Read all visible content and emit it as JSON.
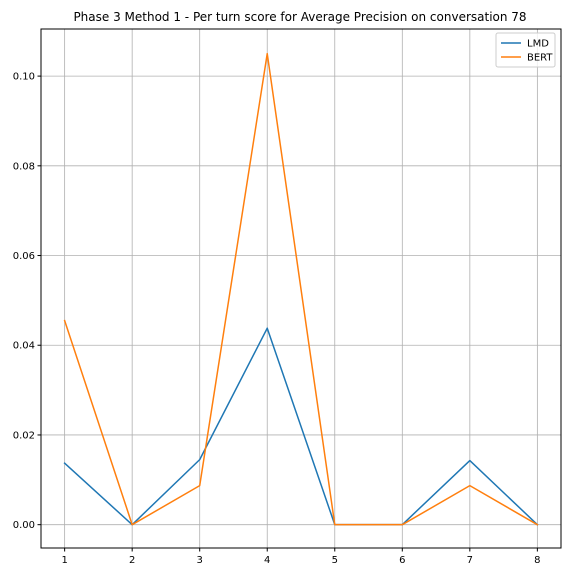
{
  "chart_data": {
    "type": "line",
    "title": "Phase 3 Method 1 - Per turn score for Average Precision on conversation 78",
    "xlabel": "",
    "ylabel": "",
    "x": [
      1,
      2,
      3,
      4,
      5,
      6,
      7,
      8
    ],
    "xlim": [
      0.65,
      8.35
    ],
    "ylim": [
      -0.0052,
      0.1105
    ],
    "yticks": [
      0.0,
      0.02,
      0.04,
      0.06,
      0.08,
      0.1
    ],
    "ytick_labels": [
      "0.00",
      "0.02",
      "0.04",
      "0.06",
      "0.08",
      "0.10"
    ],
    "xtick_labels": [
      "1",
      "2",
      "3",
      "4",
      "5",
      "6",
      "7",
      "8"
    ],
    "grid": true,
    "legend_position": "top-right",
    "series": [
      {
        "name": "LMD",
        "color": "#1f77b4",
        "values": [
          0.0137,
          0.0,
          0.0145,
          0.0438,
          0.0,
          0.0,
          0.0143,
          0.0
        ]
      },
      {
        "name": "BERT",
        "color": "#ff7f0e",
        "values": [
          0.0455,
          0.0,
          0.0087,
          0.105,
          0.0,
          0.0,
          0.0087,
          0.0
        ]
      }
    ]
  }
}
